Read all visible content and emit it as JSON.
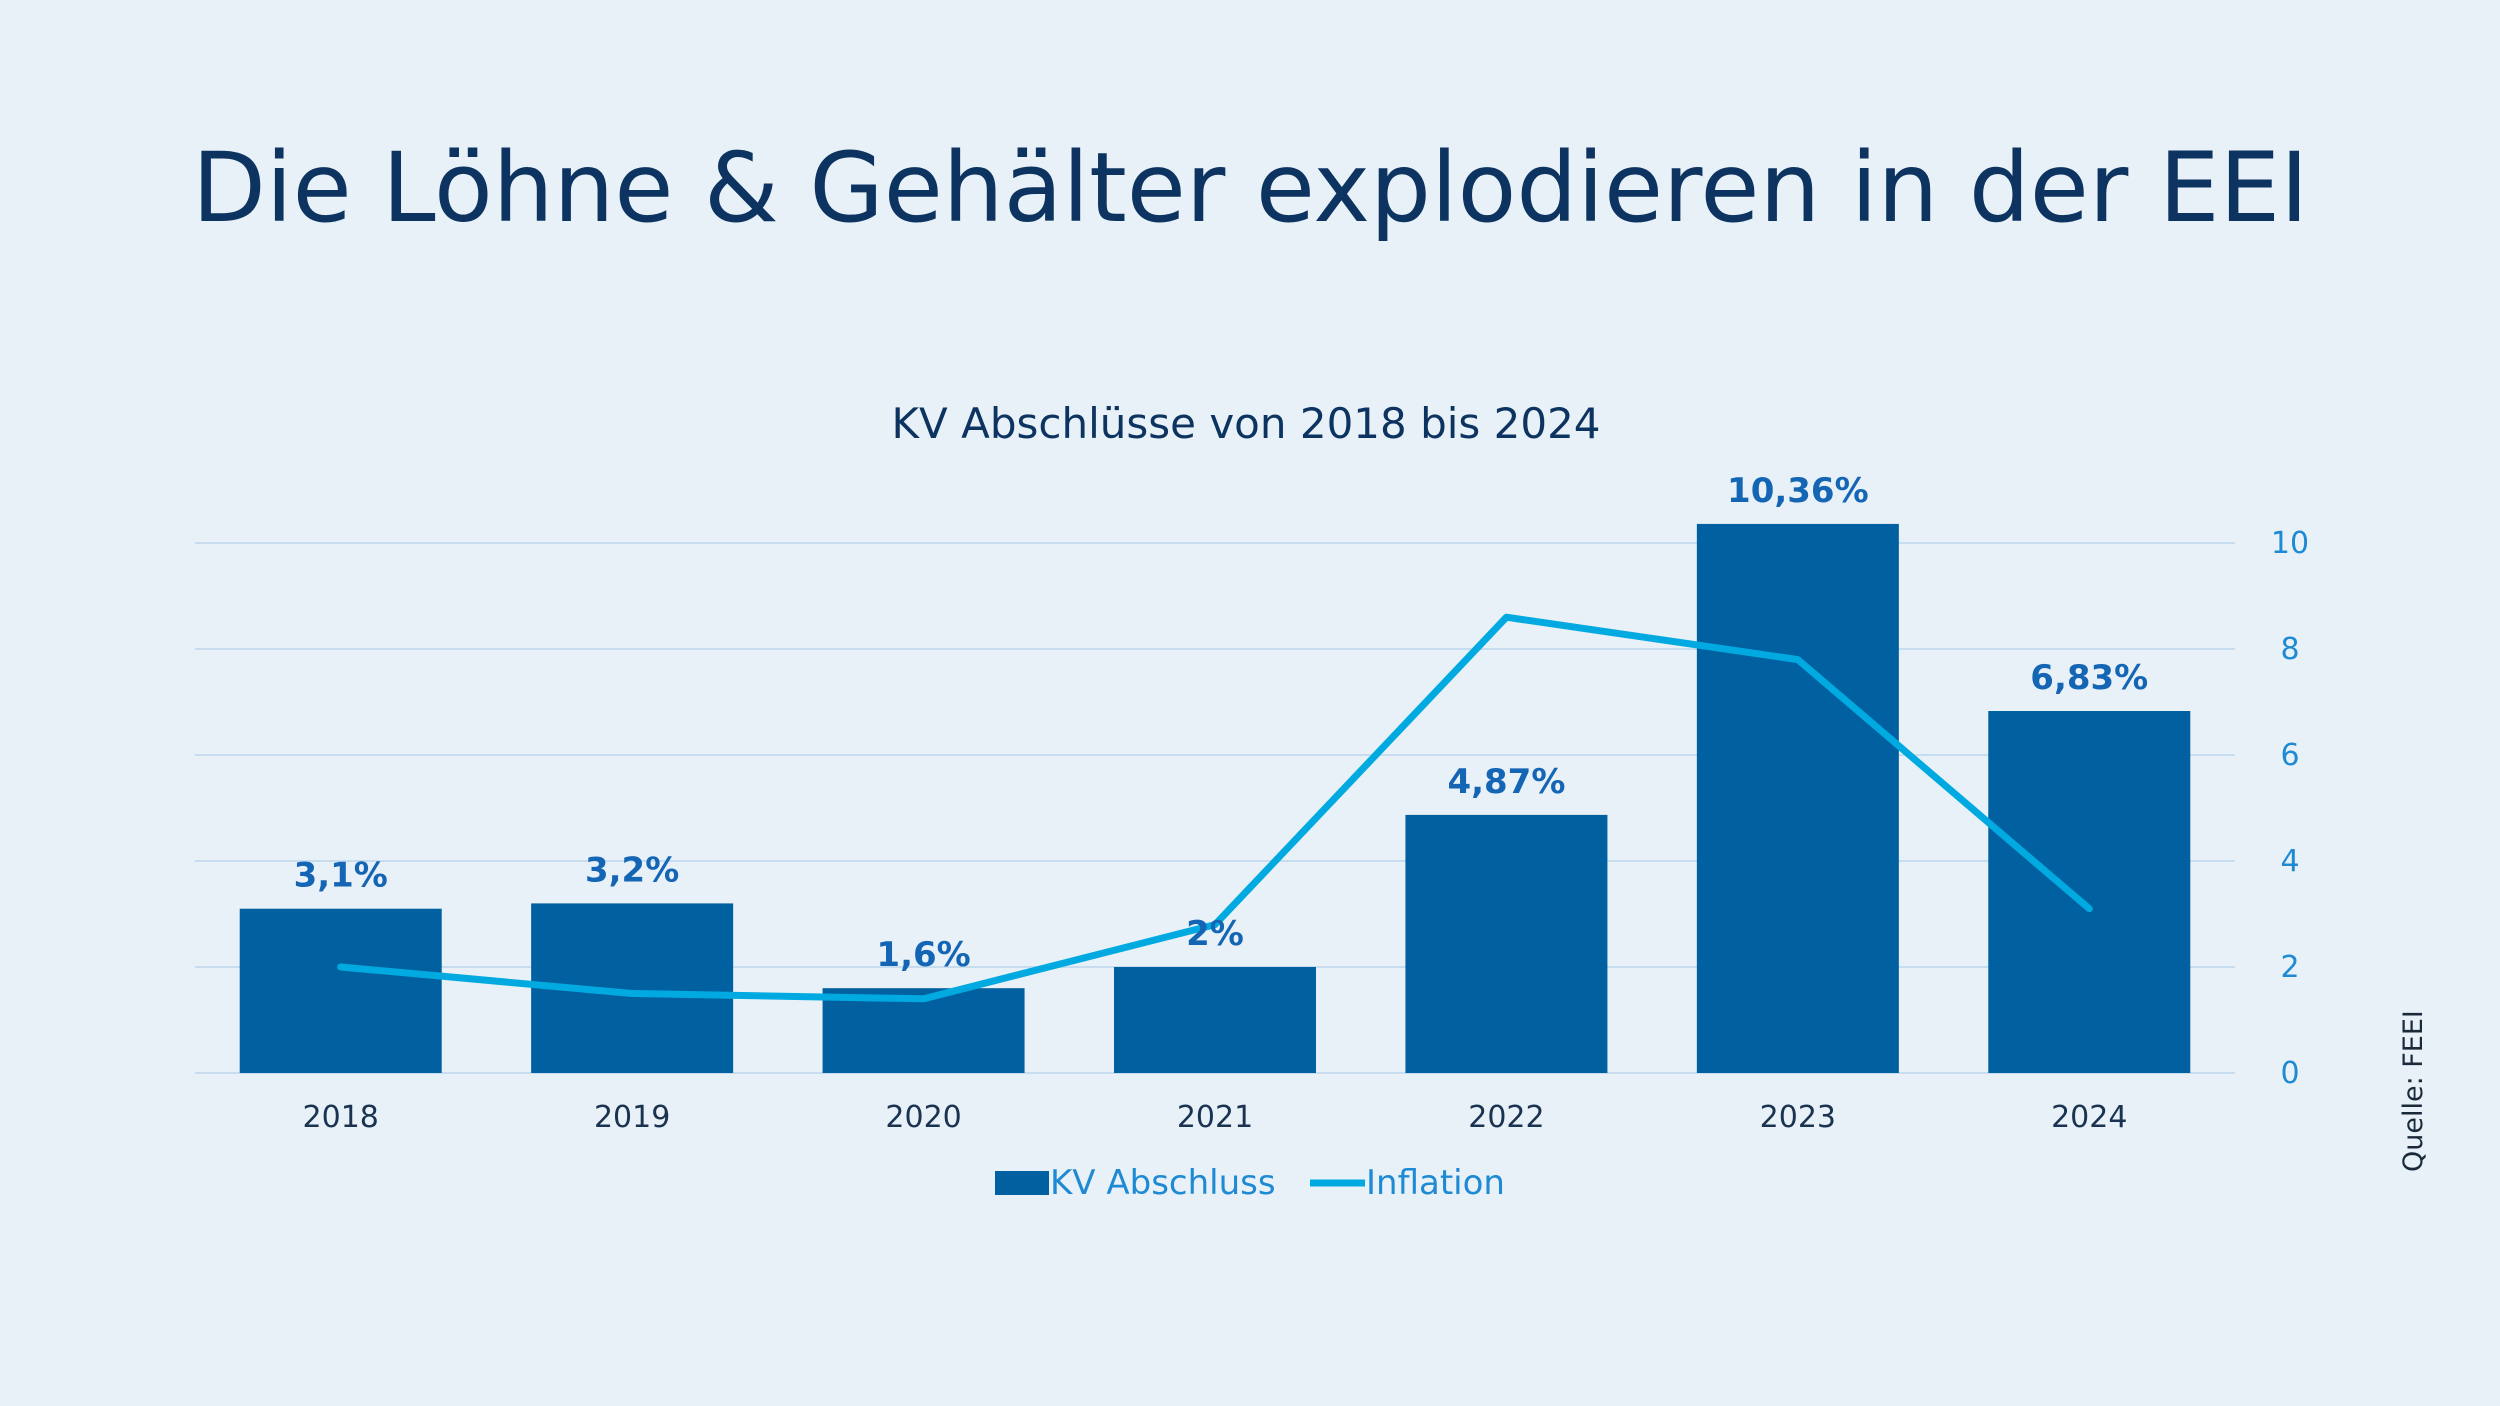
{
  "headline": "Die Löhne & Gehälter explodieren in der EEI",
  "source": "Quelle: FEEI",
  "colors": {
    "background": "#e8f1f7",
    "headline": "#0d3461",
    "bar": "#0060a0",
    "line": "#00aae0",
    "data_label": "#1565b5",
    "axis_text": "#1f8ad4",
    "grid": "#c8dcf0"
  },
  "chart_data": {
    "type": "bar",
    "title": "KV Abschlüsse von 2018 bis 2024",
    "categories": [
      "2018",
      "2019",
      "2020",
      "2021",
      "2022",
      "2023",
      "2024"
    ],
    "series": [
      {
        "name": "KV Abschluss",
        "type": "bar",
        "values": [
          3.1,
          3.2,
          1.6,
          2,
          4.87,
          10.36,
          6.83
        ],
        "labels": [
          "3,1%",
          "3,2%",
          "1,6%",
          "2%",
          "4,87%",
          "10,36%",
          "6,83%"
        ]
      },
      {
        "name": "Inflation",
        "type": "line",
        "values": [
          2.0,
          1.5,
          1.4,
          2.8,
          8.6,
          7.8,
          3.1
        ]
      }
    ],
    "y_axis": {
      "position": "right",
      "ylim": [
        0,
        10
      ],
      "ticks": [
        0,
        2,
        4,
        6,
        8,
        10
      ]
    },
    "xlabel": "",
    "ylabel": "",
    "grid": true,
    "legend_position": "bottom"
  }
}
